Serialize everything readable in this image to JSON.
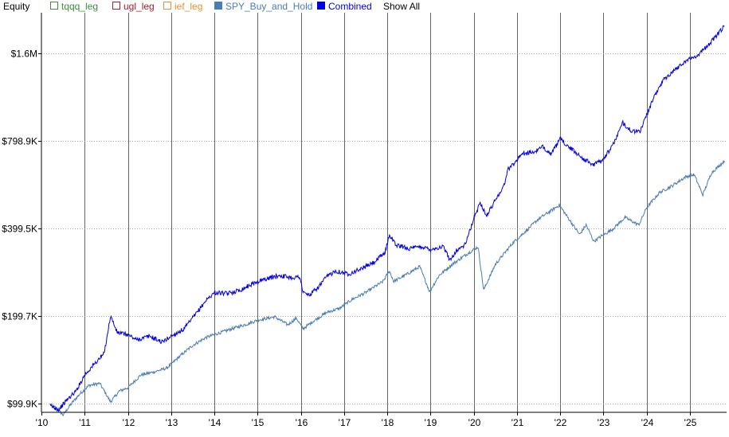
{
  "panel": {
    "title": "Equity",
    "show_all_label": "Show All"
  },
  "legend": [
    {
      "name": "tqqq_leg",
      "color": "#3e8e3e",
      "filled": false
    },
    {
      "name": "ugl_leg",
      "color": "#a31f2a",
      "filled": false
    },
    {
      "name": "ief_leg",
      "color": "#e8913a",
      "filled": false
    },
    {
      "name": "SPY_Buy_and_Hold",
      "color": "#4a7db4",
      "filled": true
    },
    {
      "name": "Combined",
      "color": "#0000e6",
      "filled": true
    }
  ],
  "chart_data": {
    "type": "line",
    "yscale": "log",
    "ylim": [
      93000,
      2200000
    ],
    "xlim": [
      2010.0,
      2025.85
    ],
    "y_ticks": [
      {
        "value": 99900,
        "label": "$99.9K"
      },
      {
        "value": 199700,
        "label": "$199.7K"
      },
      {
        "value": 399500,
        "label": "$399.5K"
      },
      {
        "value": 798900,
        "label": "$798.9K"
      },
      {
        "value": 1600000,
        "label": "$1.6M"
      }
    ],
    "x_ticks": [
      {
        "value": 2010,
        "label": "'10"
      },
      {
        "value": 2011,
        "label": "'11"
      },
      {
        "value": 2012,
        "label": "'12"
      },
      {
        "value": 2013,
        "label": "'13"
      },
      {
        "value": 2014,
        "label": "'14"
      },
      {
        "value": 2015,
        "label": "'15"
      },
      {
        "value": 2016,
        "label": "'16"
      },
      {
        "value": 2017,
        "label": "'17"
      },
      {
        "value": 2018,
        "label": "'18"
      },
      {
        "value": 2019,
        "label": "'19"
      },
      {
        "value": 2020,
        "label": "'20"
      },
      {
        "value": 2021,
        "label": "'21"
      },
      {
        "value": 2022,
        "label": "'22"
      },
      {
        "value": 2023,
        "label": "'23"
      },
      {
        "value": 2024,
        "label": "'24"
      },
      {
        "value": 2025,
        "label": "'25"
      }
    ],
    "grid": {
      "vertical": true,
      "horizontal": "dotted"
    },
    "series": [
      {
        "name": "SPY_Buy_and_Hold",
        "color": "#4a7db4",
        "points": [
          [
            2010.2,
            99000
          ],
          [
            2010.35,
            96000
          ],
          [
            2010.5,
            91000
          ],
          [
            2010.7,
            100000
          ],
          [
            2010.9,
            108000
          ],
          [
            2011.1,
            115000
          ],
          [
            2011.35,
            117000
          ],
          [
            2011.6,
            101000
          ],
          [
            2011.8,
            110000
          ],
          [
            2012.0,
            113000
          ],
          [
            2012.3,
            125000
          ],
          [
            2012.6,
            128000
          ],
          [
            2012.9,
            132000
          ],
          [
            2013.2,
            145000
          ],
          [
            2013.5,
            158000
          ],
          [
            2013.8,
            168000
          ],
          [
            2014.0,
            172000
          ],
          [
            2014.4,
            180000
          ],
          [
            2014.8,
            188000
          ],
          [
            2015.0,
            193000
          ],
          [
            2015.4,
            198000
          ],
          [
            2015.7,
            186000
          ],
          [
            2015.9,
            196000
          ],
          [
            2016.05,
            180000
          ],
          [
            2016.3,
            192000
          ],
          [
            2016.6,
            205000
          ],
          [
            2016.9,
            212000
          ],
          [
            2017.2,
            228000
          ],
          [
            2017.5,
            240000
          ],
          [
            2017.9,
            262000
          ],
          [
            2018.05,
            285000
          ],
          [
            2018.15,
            262000
          ],
          [
            2018.5,
            280000
          ],
          [
            2018.75,
            295000
          ],
          [
            2018.98,
            242000
          ],
          [
            2019.2,
            275000
          ],
          [
            2019.5,
            300000
          ],
          [
            2019.9,
            330000
          ],
          [
            2020.1,
            345000
          ],
          [
            2020.23,
            245000
          ],
          [
            2020.5,
            300000
          ],
          [
            2020.9,
            355000
          ],
          [
            2021.2,
            390000
          ],
          [
            2021.5,
            430000
          ],
          [
            2021.8,
            460000
          ],
          [
            2021.98,
            480000
          ],
          [
            2022.2,
            430000
          ],
          [
            2022.45,
            380000
          ],
          [
            2022.6,
            410000
          ],
          [
            2022.78,
            360000
          ],
          [
            2022.95,
            375000
          ],
          [
            2023.2,
            395000
          ],
          [
            2023.5,
            435000
          ],
          [
            2023.82,
            410000
          ],
          [
            2024.0,
            470000
          ],
          [
            2024.3,
            530000
          ],
          [
            2024.6,
            560000
          ],
          [
            2024.9,
            600000
          ],
          [
            2025.1,
            610000
          ],
          [
            2025.3,
            520000
          ],
          [
            2025.5,
            620000
          ],
          [
            2025.8,
            680000
          ]
        ]
      },
      {
        "name": "Combined",
        "color": "#0000e6",
        "points": [
          [
            2010.2,
            98000
          ],
          [
            2010.4,
            95000
          ],
          [
            2010.6,
            103000
          ],
          [
            2010.8,
            110000
          ],
          [
            2011.0,
            125000
          ],
          [
            2011.2,
            135000
          ],
          [
            2011.45,
            148000
          ],
          [
            2011.6,
            200000
          ],
          [
            2011.75,
            175000
          ],
          [
            2012.0,
            172000
          ],
          [
            2012.2,
            165000
          ],
          [
            2012.5,
            170000
          ],
          [
            2012.8,
            162000
          ],
          [
            2013.0,
            170000
          ],
          [
            2013.3,
            180000
          ],
          [
            2013.6,
            205000
          ],
          [
            2013.8,
            225000
          ],
          [
            2014.0,
            240000
          ],
          [
            2014.3,
            238000
          ],
          [
            2014.6,
            245000
          ],
          [
            2014.9,
            258000
          ],
          [
            2015.1,
            265000
          ],
          [
            2015.5,
            275000
          ],
          [
            2015.8,
            270000
          ],
          [
            2015.98,
            272000
          ],
          [
            2016.05,
            240000
          ],
          [
            2016.2,
            235000
          ],
          [
            2016.4,
            250000
          ],
          [
            2016.6,
            272000
          ],
          [
            2016.8,
            285000
          ],
          [
            2017.1,
            278000
          ],
          [
            2017.4,
            290000
          ],
          [
            2017.7,
            305000
          ],
          [
            2017.95,
            330000
          ],
          [
            2018.05,
            380000
          ],
          [
            2018.2,
            350000
          ],
          [
            2018.5,
            340000
          ],
          [
            2018.8,
            345000
          ],
          [
            2019.0,
            338000
          ],
          [
            2019.3,
            345000
          ],
          [
            2019.45,
            310000
          ],
          [
            2019.6,
            335000
          ],
          [
            2019.8,
            350000
          ],
          [
            2020.0,
            430000
          ],
          [
            2020.15,
            490000
          ],
          [
            2020.3,
            440000
          ],
          [
            2020.5,
            500000
          ],
          [
            2020.7,
            560000
          ],
          [
            2020.8,
            640000
          ],
          [
            2020.95,
            670000
          ],
          [
            2021.1,
            720000
          ],
          [
            2021.4,
            730000
          ],
          [
            2021.6,
            760000
          ],
          [
            2021.8,
            720000
          ],
          [
            2022.0,
            810000
          ],
          [
            2022.2,
            760000
          ],
          [
            2022.5,
            700000
          ],
          [
            2022.75,
            660000
          ],
          [
            2022.95,
            680000
          ],
          [
            2023.2,
            760000
          ],
          [
            2023.45,
            920000
          ],
          [
            2023.65,
            860000
          ],
          [
            2023.85,
            860000
          ],
          [
            2024.0,
            980000
          ],
          [
            2024.2,
            1150000
          ],
          [
            2024.4,
            1300000
          ],
          [
            2024.6,
            1380000
          ],
          [
            2024.9,
            1500000
          ],
          [
            2025.2,
            1580000
          ],
          [
            2025.5,
            1750000
          ],
          [
            2025.8,
            1980000
          ]
        ]
      }
    ]
  }
}
